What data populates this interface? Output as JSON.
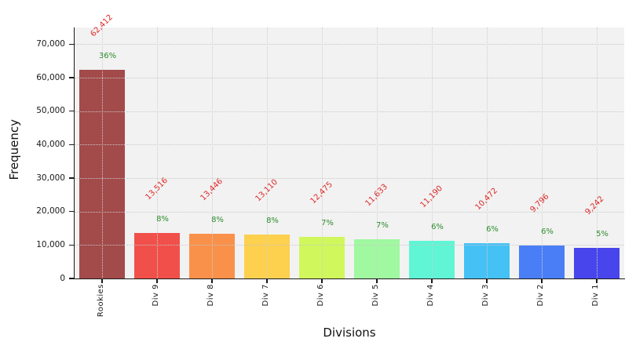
{
  "figure": {
    "background": "#ffffff",
    "plot_background": "#f2f2f2",
    "grid_color": "#c8c8c8",
    "spine_color": "#1a1a1a"
  },
  "chart_data": {
    "type": "bar",
    "title": "",
    "xlabel": "Divisions",
    "ylabel": "Frequency",
    "categories": [
      "Rookies",
      "Div 9",
      "Div 8",
      "Div 7",
      "Div 6",
      "Div 5",
      "Div 4",
      "Div 3",
      "Div 2",
      "Div 1"
    ],
    "values": [
      62412,
      13516,
      13446,
      13110,
      12475,
      11633,
      11190,
      10472,
      9796,
      9242
    ],
    "value_labels": [
      "62,412",
      "13,516",
      "13,446",
      "13,110",
      "12,475",
      "11,633",
      "11,190",
      "10,472",
      "9,796",
      "9,242"
    ],
    "percent_labels": [
      "36%",
      "8%",
      "8%",
      "8%",
      "7%",
      "7%",
      "6%",
      "6%",
      "6%",
      "5%"
    ],
    "bar_colors": [
      "#a34a4a",
      "#f1504a",
      "#f9914a",
      "#fdd04e",
      "#d0f75c",
      "#a0f8a0",
      "#5ff5d5",
      "#45c1f5",
      "#4a7ef7",
      "#4845ec"
    ],
    "value_label_color": "#e02828",
    "percent_label_color": "#2d8c2d",
    "ylim": [
      0,
      75000
    ],
    "yticks": [
      0,
      10000,
      20000,
      30000,
      40000,
      50000,
      60000,
      70000
    ],
    "ytick_labels": [
      "0",
      "10,000",
      "20,000",
      "30,000",
      "40,000",
      "50,000",
      "60,000",
      "70,000"
    ],
    "grid": true,
    "grid_style": "dotted",
    "legend": null
  }
}
